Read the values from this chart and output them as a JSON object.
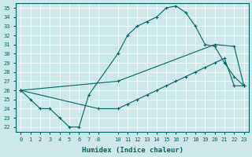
{
  "xlabel": "Humidex (Indice chaleur)",
  "background_color": "#cce8e8",
  "line_color": "#006666",
  "xlim": [
    -0.5,
    23.5
  ],
  "ylim": [
    21.5,
    35.5
  ],
  "xticks": [
    0,
    1,
    2,
    3,
    4,
    5,
    6,
    7,
    8,
    10,
    11,
    12,
    13,
    14,
    15,
    16,
    17,
    18,
    19,
    20,
    21,
    22,
    23
  ],
  "yticks": [
    22,
    23,
    24,
    25,
    26,
    27,
    28,
    29,
    30,
    31,
    32,
    33,
    34,
    35
  ],
  "line1": {
    "x": [
      0,
      1,
      2,
      3,
      4,
      5,
      6,
      7,
      10,
      11,
      12,
      13,
      14,
      15,
      16,
      17,
      18,
      19,
      20,
      21,
      22,
      23
    ],
    "y": [
      26,
      25,
      24,
      24,
      23,
      22,
      22,
      25.5,
      30,
      32,
      33,
      33.5,
      34,
      35,
      35.2,
      34.5,
      33,
      31,
      30.8,
      29,
      27.5,
      26.5
    ]
  },
  "line2": {
    "x": [
      0,
      10,
      20,
      22,
      23
    ],
    "y": [
      26,
      27,
      31,
      30.8,
      26.5
    ]
  },
  "line3": {
    "x": [
      0,
      8,
      10,
      11,
      12,
      13,
      14,
      15,
      16,
      17,
      18,
      19,
      20,
      21,
      22,
      23
    ],
    "y": [
      26,
      24,
      24,
      24.5,
      25,
      25.5,
      26,
      26.5,
      27,
      27.5,
      28,
      28.5,
      29,
      29.5,
      26.5,
      26.5
    ]
  }
}
